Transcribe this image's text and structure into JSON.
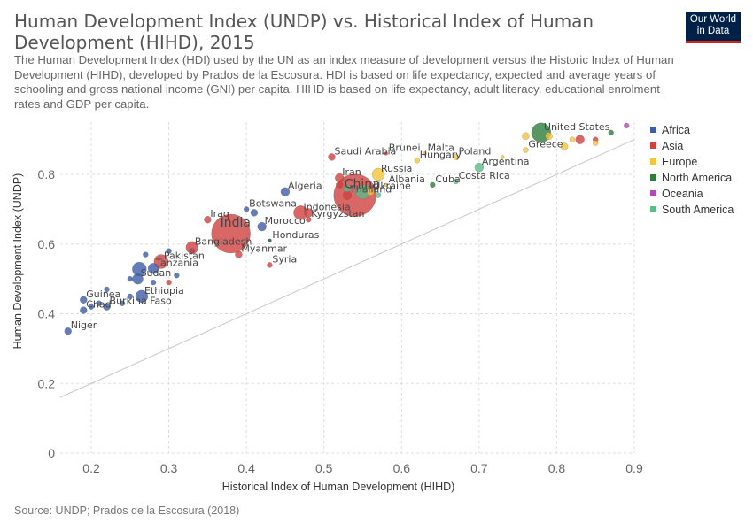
{
  "header": {
    "title": "Human Development Index (UNDP) vs. Historical Index of Human Development (HIHD), 2015",
    "subtitle": "The Human Development Index (HDI) used by the UN as an index measure of development versus the Historic Index of Human Development (HIHD), developed by Prados de la Escosura. HDI is based on life expectancy, expected and average years of schooling and gross national income (GNI) per capita. HIHD is based on life expectancy, adult literacy, educational enrolment rates and GDP per capita.",
    "logo_line1": "Our World",
    "logo_line2": "in Data"
  },
  "footer": {
    "source": "Source: UNDP; Prados de la Escosura (2018)"
  },
  "chart_data": {
    "type": "scatter",
    "xlabel": "Historical Index of Human Development (HIHD)",
    "ylabel": "Human Development Index (UNDP)",
    "xlim": [
      0.16,
      0.9
    ],
    "ylim": [
      0,
      0.95
    ],
    "xticks": [
      "0.2",
      "0.3",
      "0.4",
      "0.5",
      "0.6",
      "0.7",
      "0.8",
      "0.9"
    ],
    "yticks": [
      "0",
      "0.2",
      "0.4",
      "0.6",
      "0.8"
    ],
    "grid": true,
    "legend_position": "right",
    "reference_line": {
      "x": [
        0.16,
        0.9
      ],
      "y": [
        0.16,
        0.9
      ]
    },
    "legend": [
      {
        "name": "Africa",
        "color": "#3d5da8"
      },
      {
        "name": "Asia",
        "color": "#d0413f"
      },
      {
        "name": "Europe",
        "color": "#f2c53b"
      },
      {
        "name": "North America",
        "color": "#2e7d3d"
      },
      {
        "name": "Oceania",
        "color": "#b14ab9"
      },
      {
        "name": "South America",
        "color": "#5bbd8b"
      }
    ],
    "points": [
      {
        "label": "Niger",
        "region": "Africa",
        "x": 0.17,
        "y": 0.35,
        "size": 4
      },
      {
        "label": "Chad",
        "region": "Africa",
        "x": 0.19,
        "y": 0.41,
        "size": 4
      },
      {
        "label": "Guinea",
        "region": "Africa",
        "x": 0.19,
        "y": 0.44,
        "size": 4
      },
      {
        "label": "Burkina Faso",
        "region": "Africa",
        "x": 0.22,
        "y": 0.42,
        "size": 4
      },
      {
        "label": "Ethiopia",
        "region": "Africa",
        "x": 0.265,
        "y": 0.45,
        "size": 7
      },
      {
        "label": "Sudan",
        "region": "Africa",
        "x": 0.26,
        "y": 0.5,
        "size": 6
      },
      {
        "label": "Tanzania",
        "region": "Africa",
        "x": 0.28,
        "y": 0.53,
        "size": 6
      },
      {
        "label": "Morocco",
        "region": "Africa",
        "x": 0.42,
        "y": 0.65,
        "size": 5
      },
      {
        "label": "Botswana",
        "region": "Africa",
        "x": 0.4,
        "y": 0.7,
        "size": 3
      },
      {
        "label": "Algeria",
        "region": "Africa",
        "x": 0.45,
        "y": 0.75,
        "size": 5
      },
      {
        "label": "",
        "region": "Africa",
        "x": 0.262,
        "y": 0.528,
        "size": 8
      },
      {
        "label": "",
        "region": "Africa",
        "x": 0.2,
        "y": 0.42,
        "size": 3
      },
      {
        "label": "",
        "region": "Africa",
        "x": 0.21,
        "y": 0.43,
        "size": 3
      },
      {
        "label": "",
        "region": "Africa",
        "x": 0.22,
        "y": 0.47,
        "size": 3
      },
      {
        "label": "",
        "region": "Africa",
        "x": 0.24,
        "y": 0.43,
        "size": 3
      },
      {
        "label": "",
        "region": "Africa",
        "x": 0.25,
        "y": 0.45,
        "size": 3
      },
      {
        "label": "",
        "region": "Africa",
        "x": 0.25,
        "y": 0.5,
        "size": 3
      },
      {
        "label": "",
        "region": "Africa",
        "x": 0.27,
        "y": 0.57,
        "size": 3
      },
      {
        "label": "",
        "region": "Africa",
        "x": 0.28,
        "y": 0.49,
        "size": 3
      },
      {
        "label": "",
        "region": "Africa",
        "x": 0.3,
        "y": 0.58,
        "size": 3
      },
      {
        "label": "",
        "region": "Africa",
        "x": 0.31,
        "y": 0.51,
        "size": 3
      },
      {
        "label": "",
        "region": "Africa",
        "x": 0.33,
        "y": 0.58,
        "size": 3
      },
      {
        "label": "",
        "region": "Africa",
        "x": 0.41,
        "y": 0.69,
        "size": 4
      },
      {
        "label": "Iraq",
        "region": "Asia",
        "x": 0.35,
        "y": 0.67,
        "size": 4
      },
      {
        "label": "India",
        "region": "Asia",
        "x": 0.38,
        "y": 0.63,
        "size": 22
      },
      {
        "label": "Bangladesh",
        "region": "Asia",
        "x": 0.33,
        "y": 0.59,
        "size": 7
      },
      {
        "label": "Pakistan",
        "region": "Asia",
        "x": 0.29,
        "y": 0.55,
        "size": 8
      },
      {
        "label": "Myanmar",
        "region": "Asia",
        "x": 0.39,
        "y": 0.57,
        "size": 4
      },
      {
        "label": "Syria",
        "region": "Asia",
        "x": 0.43,
        "y": 0.54,
        "size": 3
      },
      {
        "label": "Indonesia",
        "region": "Asia",
        "x": 0.47,
        "y": 0.69,
        "size": 8
      },
      {
        "label": "Kyrgyzstan",
        "region": "Asia",
        "x": 0.48,
        "y": 0.67,
        "size": 3
      },
      {
        "label": "Saudi Arabia",
        "region": "Asia",
        "x": 0.51,
        "y": 0.85,
        "size": 4
      },
      {
        "label": "Brunei",
        "region": "Asia",
        "x": 0.58,
        "y": 0.86,
        "size": 2
      },
      {
        "label": "Iran",
        "region": "Asia",
        "x": 0.52,
        "y": 0.79,
        "size": 5
      },
      {
        "label": "China",
        "region": "Asia",
        "x": 0.54,
        "y": 0.74,
        "size": 24
      },
      {
        "label": "Thailand",
        "region": "Asia",
        "x": 0.53,
        "y": 0.74,
        "size": 5
      },
      {
        "label": "",
        "region": "Asia",
        "x": 0.48,
        "y": 0.69,
        "size": 5
      },
      {
        "label": "",
        "region": "Asia",
        "x": 0.3,
        "y": 0.49,
        "size": 3
      },
      {
        "label": "",
        "region": "Asia",
        "x": 0.33,
        "y": 0.58,
        "size": 3
      },
      {
        "label": "",
        "region": "Asia",
        "x": 0.52,
        "y": 0.77,
        "size": 4
      },
      {
        "label": "",
        "region": "Asia",
        "x": 0.83,
        "y": 0.9,
        "size": 5
      },
      {
        "label": "",
        "region": "Asia",
        "x": 0.85,
        "y": 0.9,
        "size": 3
      },
      {
        "label": "Malta",
        "region": "Europe",
        "x": 0.63,
        "y": 0.86,
        "size": 2
      },
      {
        "label": "Poland",
        "region": "Europe",
        "x": 0.67,
        "y": 0.85,
        "size": 3
      },
      {
        "label": "Hungary",
        "region": "Europe",
        "x": 0.62,
        "y": 0.84,
        "size": 3
      },
      {
        "label": "Russia",
        "region": "Europe",
        "x": 0.57,
        "y": 0.8,
        "size": 7
      },
      {
        "label": "Greece",
        "region": "Europe",
        "x": 0.76,
        "y": 0.87,
        "size": 3
      },
      {
        "label": "Albania",
        "region": "Europe",
        "x": 0.58,
        "y": 0.77,
        "size": 2
      },
      {
        "label": "Ukraine",
        "region": "Europe",
        "x": 0.56,
        "y": 0.75,
        "size": 4
      },
      {
        "label": "",
        "region": "Europe",
        "x": 0.76,
        "y": 0.91,
        "size": 4
      },
      {
        "label": "",
        "region": "Europe",
        "x": 0.79,
        "y": 0.91,
        "size": 4
      },
      {
        "label": "",
        "region": "Europe",
        "x": 0.81,
        "y": 0.88,
        "size": 4
      },
      {
        "label": "",
        "region": "Europe",
        "x": 0.82,
        "y": 0.9,
        "size": 3
      },
      {
        "label": "",
        "region": "Europe",
        "x": 0.85,
        "y": 0.89,
        "size": 3
      },
      {
        "label": "",
        "region": "Europe",
        "x": 0.73,
        "y": 0.85,
        "size": 2
      },
      {
        "label": "United States",
        "region": "North America",
        "x": 0.78,
        "y": 0.92,
        "size": 11
      },
      {
        "label": "Cuba",
        "region": "North America",
        "x": 0.64,
        "y": 0.77,
        "size": 3
      },
      {
        "label": "",
        "region": "North America",
        "x": 0.87,
        "y": 0.92,
        "size": 3
      },
      {
        "label": "",
        "region": "North America",
        "x": 0.43,
        "y": 0.61,
        "size": 2
      },
      {
        "label": "Honduras",
        "region": "North America",
        "x": 0.43,
        "y": 0.61,
        "size": 2
      },
      {
        "label": "",
        "region": "Oceania",
        "x": 0.89,
        "y": 0.94,
        "size": 3
      },
      {
        "label": "Argentina",
        "region": "South America",
        "x": 0.7,
        "y": 0.82,
        "size": 5
      },
      {
        "label": "Costa Rica",
        "region": "South America",
        "x": 0.67,
        "y": 0.78,
        "size": 3
      },
      {
        "label": "",
        "region": "South America",
        "x": 0.55,
        "y": 0.75,
        "size": 8
      },
      {
        "label": "",
        "region": "South America",
        "x": 0.53,
        "y": 0.76,
        "size": 4
      },
      {
        "label": "",
        "region": "South America",
        "x": 0.57,
        "y": 0.74,
        "size": 3
      }
    ]
  }
}
